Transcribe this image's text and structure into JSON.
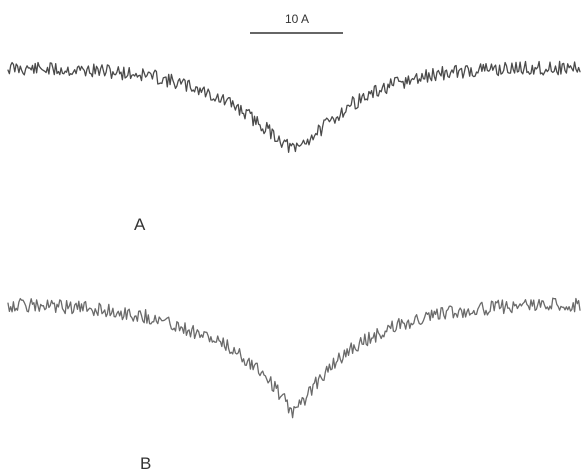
{
  "chart_data": [
    {
      "type": "line",
      "panel_label": "A",
      "scale_bar_label": "10 A",
      "trace_color": "#4a4a4a",
      "shape": "noisy V-shaped dip",
      "x": [
        -30,
        -25,
        -20,
        -15,
        -10,
        -6,
        -3,
        0,
        3,
        6,
        10,
        15,
        20,
        25,
        30
      ],
      "y": [
        1.0,
        0.99,
        0.98,
        0.95,
        0.86,
        0.74,
        0.6,
        0.45,
        0.6,
        0.76,
        0.88,
        0.96,
        0.99,
        1.0,
        1.0
      ]
    },
    {
      "type": "line",
      "panel_label": "B",
      "scale_bar_label": "",
      "trace_color": "#6a6a6a",
      "shape": "noisy V-shaped dip",
      "x": [
        -30,
        -25,
        -20,
        -15,
        -10,
        -6,
        -3,
        0,
        3,
        6,
        10,
        15,
        20,
        25,
        30
      ],
      "y": [
        1.0,
        0.99,
        0.97,
        0.92,
        0.82,
        0.7,
        0.55,
        0.3,
        0.55,
        0.72,
        0.85,
        0.94,
        0.98,
        1.0,
        1.0
      ]
    }
  ]
}
